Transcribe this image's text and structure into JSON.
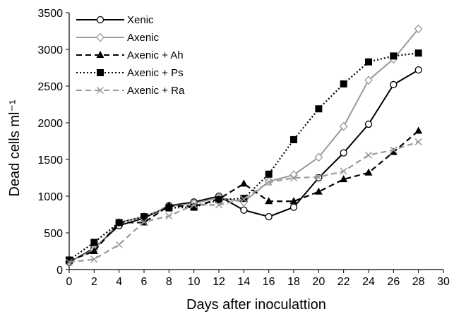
{
  "chart_data": {
    "type": "line",
    "title": "",
    "xlabel": "Days after inoculattion",
    "ylabel": "Dead cells ml⁻¹",
    "xlim": [
      0,
      30
    ],
    "ylim": [
      0,
      3500
    ],
    "xticks": [
      0,
      2,
      4,
      6,
      8,
      10,
      12,
      14,
      16,
      18,
      20,
      22,
      24,
      26,
      28,
      30
    ],
    "yticks": [
      0,
      500,
      1000,
      1500,
      2000,
      2500,
      3000,
      3500
    ],
    "grid": false,
    "legend_position": "top-left",
    "x": [
      0,
      2,
      4,
      6,
      8,
      10,
      12,
      14,
      16,
      18,
      20,
      22,
      24,
      26,
      28
    ],
    "series": [
      {
        "name": "Xenic",
        "color": "#000000",
        "line_style": "solid",
        "marker": "open-circle",
        "values": [
          100,
          290,
          600,
          700,
          870,
          920,
          1000,
          810,
          720,
          850,
          1250,
          1590,
          1980,
          2520,
          2720
        ]
      },
      {
        "name": "Axenic",
        "color": "#999999",
        "line_style": "solid",
        "marker": "open-diamond",
        "values": [
          110,
          270,
          640,
          720,
          860,
          900,
          980,
          920,
          1200,
          1290,
          1530,
          1950,
          2580,
          2870,
          3280
        ]
      },
      {
        "name": "Axenic + Ah",
        "color": "#000000",
        "line_style": "dashed",
        "marker": "filled-triangle",
        "values": [
          120,
          250,
          640,
          640,
          870,
          860,
          960,
          1170,
          930,
          930,
          1060,
          1230,
          1320,
          1600,
          1890
        ]
      },
      {
        "name": "Axenic + Ps",
        "color": "#000000",
        "line_style": "dotted",
        "marker": "filled-square",
        "values": [
          130,
          370,
          640,
          720,
          840,
          850,
          950,
          970,
          1300,
          1770,
          2190,
          2530,
          2830,
          2910,
          2950
        ]
      },
      {
        "name": "Axenic + Ra",
        "color": "#999999",
        "line_style": "dashed",
        "marker": "cross",
        "values": [
          100,
          140,
          340,
          650,
          730,
          880,
          880,
          960,
          1190,
          1250,
          1260,
          1340,
          1560,
          1630,
          1740
        ]
      }
    ]
  }
}
